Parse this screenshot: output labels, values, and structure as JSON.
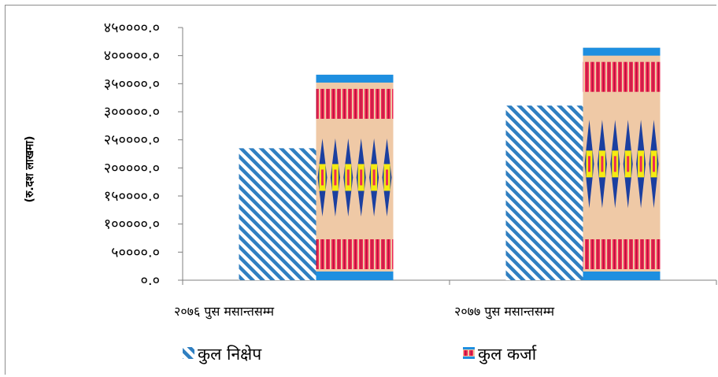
{
  "chart_data": {
    "type": "bar",
    "ylabel": "(रु.दश लाखमा)",
    "ylim": [
      0,
      450000
    ],
    "y_ticks": [
      "०.०",
      "५००००.०",
      "१०००००.०",
      "१५००००.०",
      "२०००००.०",
      "२५००००.०",
      "३०००००.०",
      "३५००००.०",
      "४०००००.०",
      "४५००००.०"
    ],
    "categories": [
      "२०७६ पुस मसान्तसम्म",
      "२०७७ पुस मसान्तसम्म"
    ],
    "series": [
      {
        "name": "कुल निक्षेप",
        "values": [
          235000,
          311000
        ]
      },
      {
        "name": "कुल कर्जा",
        "values": [
          366000,
          414000
        ]
      }
    ],
    "grid": false,
    "legend_position": "bottom",
    "colors": {
      "deposit_stripe": "#2f7fc1",
      "loan_base": "#efc9a6",
      "loan_band": "#1e8fe0",
      "loan_red": "#ee2a55",
      "loan_diamond": "#1b3fa0",
      "loan_yellow": "#f5ea12"
    }
  }
}
